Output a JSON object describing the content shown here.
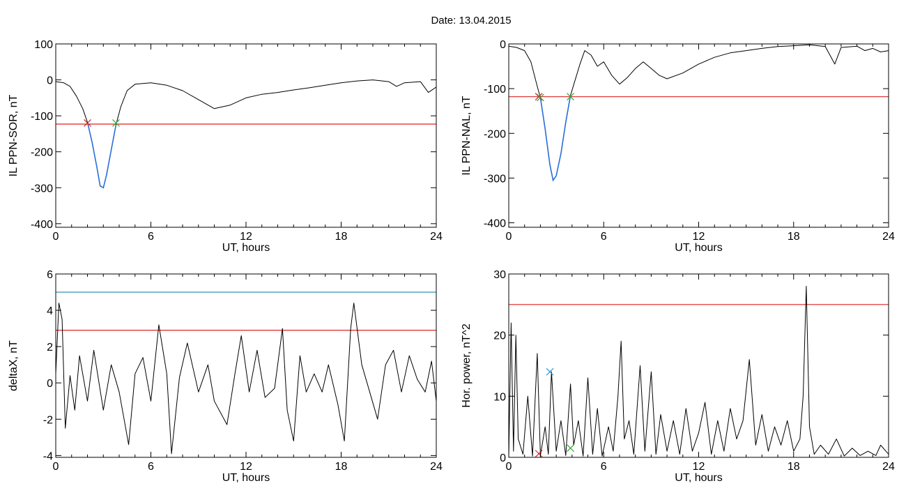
{
  "title": "Date:  13.04.2015",
  "colors": {
    "trace": "#000000",
    "threshold": "#dd2222",
    "upper": "#1f8aa8",
    "segment": "#2a6fdb",
    "start_marker": "#cc2222",
    "end_marker": "#33aa33",
    "peak_marker": "#3399cc"
  },
  "chart_data": [
    {
      "type": "line",
      "xlabel": "UT, hours",
      "ylabel": "IL PPN-SOR, nT",
      "xlim": [
        0,
        24
      ],
      "ylim": [
        -410,
        100
      ],
      "xticks": [
        0,
        6,
        12,
        18,
        24
      ],
      "yticks": [
        100,
        0,
        -100,
        -200,
        -300,
        -400
      ],
      "hlines": [
        {
          "y": -123,
          "color": "threshold"
        }
      ],
      "series": [
        {
          "color": "trace",
          "points": [
            [
              0,
              -5
            ],
            [
              0.5,
              -8
            ],
            [
              0.9,
              -18
            ],
            [
              1.3,
              -45
            ],
            [
              1.7,
              -80
            ],
            [
              2.0,
              -118
            ],
            [
              2.3,
              -175
            ],
            [
              2.6,
              -245
            ],
            [
              2.8,
              -295
            ],
            [
              3.0,
              -300
            ],
            [
              3.2,
              -265
            ],
            [
              3.5,
              -195
            ],
            [
              3.8,
              -125
            ],
            [
              4.1,
              -75
            ],
            [
              4.5,
              -30
            ],
            [
              5.0,
              -12
            ],
            [
              6.0,
              -8
            ],
            [
              7.0,
              -15
            ],
            [
              8.0,
              -30
            ],
            [
              9.0,
              -55
            ],
            [
              10.0,
              -80
            ],
            [
              11.0,
              -70
            ],
            [
              12.0,
              -50
            ],
            [
              13.0,
              -40
            ],
            [
              14.0,
              -35
            ],
            [
              15.0,
              -28
            ],
            [
              16.0,
              -22
            ],
            [
              17.0,
              -15
            ],
            [
              18.0,
              -8
            ],
            [
              19.0,
              -3
            ],
            [
              20.0,
              0
            ],
            [
              21.0,
              -5
            ],
            [
              21.5,
              -18
            ],
            [
              22.0,
              -8
            ],
            [
              23.0,
              -5
            ],
            [
              23.5,
              -35
            ],
            [
              24.0,
              -20
            ]
          ]
        }
      ],
      "segments": [
        {
          "color": "segment",
          "x_range": [
            2.0,
            3.8
          ]
        }
      ],
      "markers": [
        {
          "x": 2.0,
          "y": -120,
          "color": "start_marker",
          "symbol": "x"
        },
        {
          "x": 3.8,
          "y": -120,
          "color": "end_marker",
          "symbol": "x"
        }
      ]
    },
    {
      "type": "line",
      "xlabel": "UT, hours",
      "ylabel": "IL PPN-NAL, nT",
      "xlim": [
        0,
        24
      ],
      "ylim": [
        -410,
        0
      ],
      "xticks": [
        0,
        6,
        12,
        18,
        24
      ],
      "yticks": [
        0,
        -100,
        -200,
        -300,
        -400
      ],
      "hlines": [
        {
          "y": -118,
          "color": "threshold"
        }
      ],
      "series": [
        {
          "color": "trace",
          "points": [
            [
              0,
              -5
            ],
            [
              0.5,
              -8
            ],
            [
              1.0,
              -15
            ],
            [
              1.4,
              -40
            ],
            [
              1.8,
              -95
            ],
            [
              2.0,
              -120
            ],
            [
              2.3,
              -190
            ],
            [
              2.6,
              -270
            ],
            [
              2.8,
              -305
            ],
            [
              3.0,
              -295
            ],
            [
              3.3,
              -245
            ],
            [
              3.6,
              -175
            ],
            [
              3.9,
              -115
            ],
            [
              4.2,
              -80
            ],
            [
              4.5,
              -45
            ],
            [
              4.8,
              -15
            ],
            [
              5.2,
              -25
            ],
            [
              5.6,
              -50
            ],
            [
              6.0,
              -40
            ],
            [
              6.5,
              -70
            ],
            [
              7.0,
              -90
            ],
            [
              7.5,
              -75
            ],
            [
              8.0,
              -55
            ],
            [
              8.5,
              -40
            ],
            [
              9.0,
              -55
            ],
            [
              9.5,
              -70
            ],
            [
              10.0,
              -78
            ],
            [
              11.0,
              -65
            ],
            [
              12.0,
              -45
            ],
            [
              13.0,
              -30
            ],
            [
              14.0,
              -20
            ],
            [
              15.0,
              -15
            ],
            [
              16.0,
              -10
            ],
            [
              17.0,
              -6
            ],
            [
              18.0,
              -4
            ],
            [
              19.0,
              -2
            ],
            [
              20.0,
              -6
            ],
            [
              20.6,
              -45
            ],
            [
              21.0,
              -8
            ],
            [
              22.0,
              -5
            ],
            [
              22.5,
              -15
            ],
            [
              23.0,
              -10
            ],
            [
              23.5,
              -18
            ],
            [
              24.0,
              -15
            ]
          ]
        }
      ],
      "segments": [
        {
          "color": "segment",
          "x_range": [
            2.0,
            3.9
          ]
        }
      ],
      "markers": [
        {
          "x": 1.9,
          "y": -118,
          "color": "start_marker",
          "symbol": "x"
        },
        {
          "x": 2.0,
          "y": -120,
          "color": "end_marker",
          "symbol": "x"
        },
        {
          "x": 3.9,
          "y": -118,
          "color": "end_marker",
          "symbol": "x"
        }
      ]
    },
    {
      "type": "line",
      "xlabel": "UT, hours",
      "ylabel": "deltaX, nT",
      "xlim": [
        0,
        24
      ],
      "ylim": [
        -4.1,
        6
      ],
      "xticks": [
        0,
        6,
        12,
        18,
        24
      ],
      "yticks": [
        6,
        4,
        2,
        0,
        -2,
        -4
      ],
      "hlines": [
        {
          "y": 5.0,
          "color": "upper"
        },
        {
          "y": 2.9,
          "color": "threshold"
        }
      ],
      "series": [
        {
          "color": "trace",
          "points": [
            [
              0,
              0.5
            ],
            [
              0.2,
              4.4
            ],
            [
              0.4,
              3.5
            ],
            [
              0.6,
              -2.5
            ],
            [
              0.9,
              0.4
            ],
            [
              1.2,
              -1.5
            ],
            [
              1.5,
              1.5
            ],
            [
              2.0,
              -1.0
            ],
            [
              2.4,
              1.8
            ],
            [
              3.0,
              -1.5
            ],
            [
              3.5,
              1.0
            ],
            [
              4.0,
              -0.5
            ],
            [
              4.6,
              -3.4
            ],
            [
              5.0,
              0.5
            ],
            [
              5.5,
              1.4
            ],
            [
              6.0,
              -1.0
            ],
            [
              6.5,
              3.2
            ],
            [
              7.0,
              0.5
            ],
            [
              7.3,
              -3.9
            ],
            [
              7.8,
              0.3
            ],
            [
              8.3,
              2.2
            ],
            [
              9.0,
              -0.5
            ],
            [
              9.6,
              1.0
            ],
            [
              10.0,
              -1.0
            ],
            [
              10.8,
              -2.3
            ],
            [
              11.3,
              0.5
            ],
            [
              11.7,
              2.6
            ],
            [
              12.2,
              -0.5
            ],
            [
              12.7,
              1.8
            ],
            [
              13.2,
              -0.8
            ],
            [
              13.8,
              -0.3
            ],
            [
              14.3,
              3.0
            ],
            [
              14.6,
              -1.5
            ],
            [
              15.0,
              -3.2
            ],
            [
              15.4,
              1.5
            ],
            [
              15.8,
              -0.5
            ],
            [
              16.3,
              0.5
            ],
            [
              16.8,
              -0.5
            ],
            [
              17.2,
              1.0
            ],
            [
              17.8,
              -1.2
            ],
            [
              18.2,
              -3.2
            ],
            [
              18.6,
              3.0
            ],
            [
              18.8,
              4.4
            ],
            [
              19.3,
              1.0
            ],
            [
              19.8,
              -0.5
            ],
            [
              20.3,
              -2.0
            ],
            [
              20.8,
              1.0
            ],
            [
              21.3,
              1.8
            ],
            [
              21.8,
              -0.5
            ],
            [
              22.3,
              1.5
            ],
            [
              22.8,
              0.2
            ],
            [
              23.3,
              -0.5
            ],
            [
              23.7,
              1.2
            ],
            [
              24.0,
              -1.0
            ]
          ]
        }
      ],
      "segments": [],
      "markers": []
    },
    {
      "type": "line",
      "xlabel": "UT, hours",
      "ylabel": "Hor. power, nT^2",
      "xlim": [
        0,
        24
      ],
      "ylim": [
        0,
        30
      ],
      "xticks": [
        0,
        6,
        12,
        18,
        24
      ],
      "yticks": [
        30,
        20,
        10,
        0
      ],
      "hlines": [
        {
          "y": 25,
          "color": "threshold"
        }
      ],
      "series": [
        {
          "color": "trace",
          "points": [
            [
              0,
              0
            ],
            [
              0.15,
              22
            ],
            [
              0.3,
              1
            ],
            [
              0.45,
              20
            ],
            [
              0.6,
              3
            ],
            [
              0.9,
              0.5
            ],
            [
              1.2,
              10
            ],
            [
              1.5,
              0.2
            ],
            [
              1.8,
              17
            ],
            [
              2.0,
              0.3
            ],
            [
              2.3,
              5
            ],
            [
              2.5,
              0.5
            ],
            [
              2.7,
              14
            ],
            [
              3.0,
              1
            ],
            [
              3.3,
              6
            ],
            [
              3.6,
              0.3
            ],
            [
              3.9,
              12
            ],
            [
              4.1,
              2
            ],
            [
              4.4,
              6
            ],
            [
              4.7,
              0.2
            ],
            [
              5.0,
              13
            ],
            [
              5.3,
              0.5
            ],
            [
              5.6,
              8
            ],
            [
              5.9,
              0.2
            ],
            [
              6.3,
              5
            ],
            [
              6.6,
              1
            ],
            [
              6.9,
              10
            ],
            [
              7.1,
              19
            ],
            [
              7.3,
              3
            ],
            [
              7.6,
              6
            ],
            [
              7.9,
              0.5
            ],
            [
              8.3,
              15
            ],
            [
              8.6,
              1
            ],
            [
              9.0,
              14
            ],
            [
              9.3,
              0.5
            ],
            [
              9.6,
              7
            ],
            [
              10.0,
              1
            ],
            [
              10.4,
              6
            ],
            [
              10.8,
              0.5
            ],
            [
              11.2,
              8
            ],
            [
              11.6,
              1
            ],
            [
              12.0,
              4
            ],
            [
              12.4,
              9
            ],
            [
              12.8,
              0.5
            ],
            [
              13.2,
              6
            ],
            [
              13.6,
              1
            ],
            [
              14.0,
              8
            ],
            [
              14.4,
              3
            ],
            [
              14.8,
              6
            ],
            [
              15.2,
              16
            ],
            [
              15.6,
              2
            ],
            [
              16.0,
              7
            ],
            [
              16.4,
              1
            ],
            [
              16.8,
              5
            ],
            [
              17.2,
              2
            ],
            [
              17.6,
              6
            ],
            [
              18.0,
              1
            ],
            [
              18.4,
              3
            ],
            [
              18.6,
              10
            ],
            [
              18.8,
              28
            ],
            [
              19.0,
              5
            ],
            [
              19.3,
              0.5
            ],
            [
              19.7,
              2
            ],
            [
              20.2,
              0.5
            ],
            [
              20.7,
              3
            ],
            [
              21.2,
              0.2
            ],
            [
              21.7,
              1.5
            ],
            [
              22.2,
              0.3
            ],
            [
              22.7,
              1
            ],
            [
              23.2,
              0.3
            ],
            [
              23.5,
              2
            ],
            [
              24.0,
              0.5
            ]
          ]
        }
      ],
      "segments": [],
      "markers": [
        {
          "x": 1.9,
          "y": 0.6,
          "color": "start_marker",
          "symbol": "x"
        },
        {
          "x": 2.6,
          "y": 14,
          "color": "peak_marker",
          "symbol": "x"
        },
        {
          "x": 3.9,
          "y": 1.5,
          "color": "end_marker",
          "symbol": "x"
        }
      ]
    }
  ]
}
